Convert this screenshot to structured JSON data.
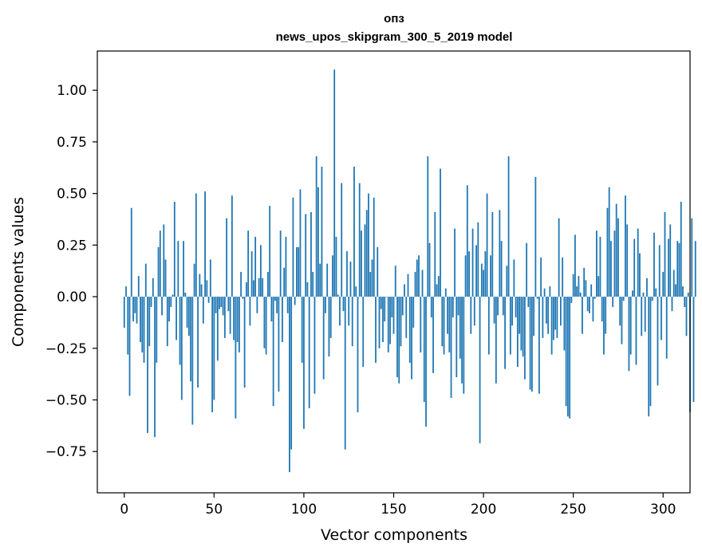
{
  "chart_data": {
    "type": "bar",
    "title_line1": "опз",
    "title_line2": "news_upos_skipgram_300_5_2019 model",
    "xlabel": "Vector components",
    "ylabel": "Components values",
    "xlim": [
      -15,
      315
    ],
    "ylim": [
      -0.95,
      1.19
    ],
    "xticks": [
      0,
      50,
      100,
      150,
      200,
      250,
      300
    ],
    "xtick_labels": [
      "0",
      "50",
      "100",
      "150",
      "200",
      "250",
      "300"
    ],
    "yticks": [
      -0.75,
      -0.5,
      -0.25,
      0.0,
      0.25,
      0.5,
      0.75,
      1.0
    ],
    "ytick_labels": [
      "−0.75",
      "−0.50",
      "−0.25",
      "0.00",
      "0.25",
      "0.50",
      "0.75",
      "1.00"
    ],
    "bar_color": "#1f77b4",
    "values": [
      -0.15,
      0.05,
      -0.28,
      -0.48,
      0.43,
      -0.12,
      -0.08,
      -0.13,
      0.1,
      -0.22,
      -0.27,
      -0.32,
      0.16,
      -0.66,
      -0.24,
      -0.05,
      0.09,
      -0.68,
      -0.32,
      0.24,
      0.32,
      -0.09,
      0.35,
      0.18,
      -0.24,
      -0.12,
      -0.05,
      0.01,
      0.46,
      -0.21,
      0.27,
      -0.33,
      -0.5,
      0.27,
      0.02,
      -0.15,
      -0.19,
      -0.41,
      -0.62,
      0.16,
      0.5,
      -0.44,
      0.11,
      0.06,
      -0.13,
      0.51,
      0.08,
      -0.03,
      0.18,
      -0.56,
      -0.5,
      -0.08,
      -0.31,
      -0.06,
      -0.05,
      -0.09,
      -0.2,
      0.38,
      -0.07,
      -0.18,
      0.49,
      -0.21,
      -0.59,
      -0.22,
      -0.27,
      0.12,
      -0.01,
      -0.44,
      0.07,
      0.32,
      -0.14,
      0.22,
      0.08,
      0.29,
      -0.08,
      0.09,
      0.25,
      0.09,
      -0.25,
      -0.28,
      0.12,
      0.44,
      -0.12,
      -0.53,
      -0.02,
      -0.08,
      -0.46,
      0.32,
      -0.22,
      0.14,
      0.29,
      -0.08,
      -0.85,
      -0.74,
      0.48,
      -0.04,
      0.24,
      0.24,
      0.52,
      -0.32,
      -0.64,
      0.4,
      0.07,
      -0.54,
      0.41,
      0.12,
      -0.47,
      0.68,
      0.53,
      0.16,
      0.63,
      -0.4,
      -0.08,
      0.16,
      -0.29,
      -0.2,
      0.2,
      1.1,
      0.29,
      0.01,
      -0.14,
      0.55,
      -0.07,
      -0.74,
      0.22,
      -0.14,
      0.17,
      -0.24,
      0.63,
      0.05,
      -0.56,
      0.55,
      0.32,
      -0.34,
      0.35,
      0.42,
      0.5,
      0.12,
      0.18,
      0.48,
      -0.32,
      0.24,
      -0.25,
      -0.06,
      -0.22,
      -0.12,
      0.0,
      -0.27,
      -0.23,
      -0.1,
      -0.18,
      0.15,
      -0.39,
      -0.42,
      -0.24,
      -0.09,
      0.06,
      -0.2,
      0.11,
      -0.32,
      -0.4,
      -0.15,
      0.12,
      0.18,
      0.2,
      -0.27,
      0.13,
      -0.51,
      -0.63,
      0.68,
      0.26,
      -0.1,
      -0.37,
      0.41,
      0.06,
      0.1,
      0.62,
      -0.24,
      -0.28,
      0.04,
      -0.18,
      -0.27,
      -0.49,
      -0.1,
      0.33,
      -0.39,
      -0.09,
      -0.3,
      -0.42,
      -0.47,
      0.2,
      0.54,
      0.22,
      -0.18,
      0.33,
      -0.14,
      0.25,
      0.36,
      -0.71,
      0.16,
      0.13,
      0.22,
      0.5,
      -0.28,
      0.2,
      0.41,
      -0.13,
      -0.42,
      -0.09,
      0.42,
      0.27,
      -0.09,
      -0.35,
      0.15,
      0.68,
      -0.28,
      -0.14,
      0.18,
      -0.1,
      -0.34,
      -0.18,
      -0.26,
      -0.29,
      -0.4,
      0.26,
      -0.05,
      -0.45,
      -0.46,
      -0.19,
      0.58,
      -0.01,
      -0.47,
      0.19,
      -0.2,
      0.04,
      -0.13,
      -0.18,
      0.05,
      -0.28,
      -0.21,
      -0.16,
      -0.2,
      0.38,
      -0.14,
      0.19,
      -0.26,
      -0.53,
      -0.58,
      -0.59,
      -0.03,
      0.11,
      0.3,
      0.05,
      0.1,
      0.02,
      -0.18,
      0.14,
      0.08,
      -0.07,
      -0.08,
      0.06,
      -0.12,
      -0.01,
      0.32,
      0.1,
      0.29,
      -0.12,
      -0.28,
      -0.18,
      0.43,
      0.53,
      0.27,
      -0.05,
      0.32,
      0.45,
      0.38,
      -0.14,
      -0.23,
      -0.02,
      0.49,
      0.35,
      -0.36,
      -0.28,
      0.03,
      0.28,
      -0.33,
      0.33,
      0.21,
      -0.19,
      0.02,
      -0.17,
      0.09,
      -0.58,
      -0.53,
      -0.02,
      0.31,
      0.04,
      -0.43,
      0.25,
      -0.21,
      0.12,
      0.41,
      -0.3,
      0.28,
      0.35,
      -0.07,
      0.13,
      0.06,
      0.27,
      0.26,
      0.46,
      0.05,
      -0.05,
      -0.19,
      0.02,
      -0.56,
      0.38,
      -0.51,
      0.27
    ]
  }
}
